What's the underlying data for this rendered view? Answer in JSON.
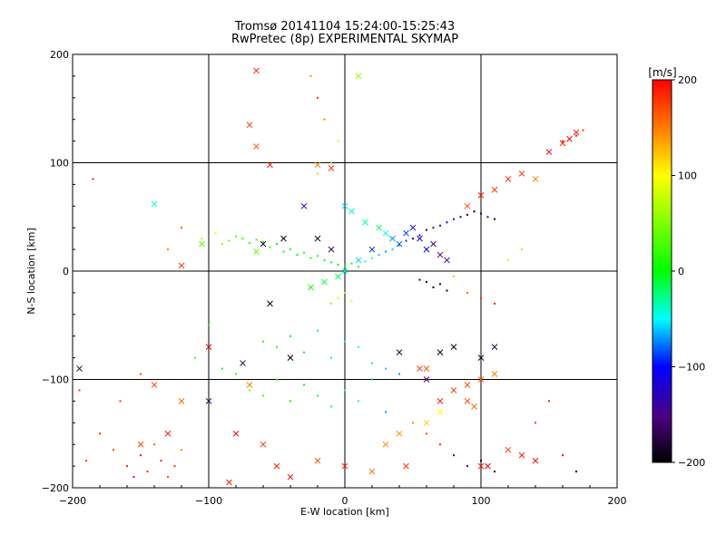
{
  "chart_data": {
    "type": "scatter",
    "title": "Tromsø 20141104 15:24:00-15:25:43",
    "subtitle": "RwPretec (8p) EXPERIMENTAL SKYMAP",
    "xlabel": "E-W location [km]",
    "ylabel": "N-S location [km]",
    "xlim": [
      -200,
      200
    ],
    "ylim": [
      -200,
      200
    ],
    "xticks": [
      "-200",
      "-100",
      "0",
      "100",
      "200"
    ],
    "yticks": [
      "-200",
      "-100",
      "0",
      "100",
      "200"
    ],
    "grid_x": [
      -100,
      0,
      100
    ],
    "grid_y": [
      -100,
      0,
      100
    ],
    "colorbar": {
      "label": "[m/s]",
      "range": [
        -200,
        200
      ],
      "ticks": [
        "200",
        "100",
        "0",
        "-100",
        "-200"
      ],
      "colors": [
        "#000000",
        "#4b0082",
        "#0000ff",
        "#00ffff",
        "#00ff00",
        "#ffff00",
        "#ff8000",
        "#ff0000"
      ]
    },
    "series": [
      {
        "name": "dot",
        "marker": "dot",
        "points": [
          [
            -190,
            -175,
            180
          ],
          [
            -180,
            -150,
            180
          ],
          [
            -170,
            -165,
            170
          ],
          [
            -160,
            -180,
            190
          ],
          [
            -150,
            -170,
            200
          ],
          [
            -145,
            -185,
            180
          ],
          [
            -140,
            -160,
            160
          ],
          [
            -135,
            -175,
            190
          ],
          [
            -130,
            -190,
            170
          ],
          [
            -125,
            -180,
            180
          ],
          [
            -120,
            -165,
            150
          ],
          [
            -155,
            -190,
            200
          ],
          [
            -165,
            -120,
            180
          ],
          [
            -150,
            -95,
            170
          ],
          [
            -195,
            -110,
            180
          ],
          [
            -185,
            85,
            190
          ],
          [
            -120,
            40,
            170
          ],
          [
            -130,
            20,
            150
          ],
          [
            -105,
            30,
            120
          ],
          [
            -95,
            35,
            90
          ],
          [
            -90,
            25,
            60
          ],
          [
            -85,
            28,
            40
          ],
          [
            -80,
            32,
            30
          ],
          [
            -75,
            30,
            20
          ],
          [
            -70,
            26,
            15
          ],
          [
            -65,
            29,
            25
          ],
          [
            -60,
            27,
            10
          ],
          [
            -55,
            22,
            20
          ],
          [
            -50,
            25,
            0
          ],
          [
            -45,
            18,
            10
          ],
          [
            -40,
            20,
            -10
          ],
          [
            -35,
            15,
            -5
          ],
          [
            -30,
            17,
            20
          ],
          [
            -25,
            12,
            10
          ],
          [
            -20,
            14,
            -20
          ],
          [
            -15,
            10,
            5
          ],
          [
            -10,
            8,
            -10
          ],
          [
            -5,
            6,
            0
          ],
          [
            0,
            5,
            -15
          ],
          [
            5,
            7,
            -5
          ],
          [
            10,
            4,
            -20
          ],
          [
            15,
            9,
            -40
          ],
          [
            20,
            12,
            -50
          ],
          [
            25,
            15,
            -60
          ],
          [
            30,
            18,
            -70
          ],
          [
            35,
            20,
            -60
          ],
          [
            40,
            24,
            -80
          ],
          [
            45,
            28,
            -90
          ],
          [
            50,
            30,
            -100
          ],
          [
            55,
            33,
            -110
          ],
          [
            60,
            38,
            -100
          ],
          [
            65,
            40,
            -120
          ],
          [
            70,
            42,
            -130
          ],
          [
            75,
            45,
            -110
          ],
          [
            80,
            48,
            -150
          ],
          [
            85,
            50,
            -180
          ],
          [
            90,
            52,
            -190
          ],
          [
            95,
            55,
            -200
          ],
          [
            100,
            53,
            -170
          ],
          [
            105,
            50,
            -160
          ],
          [
            110,
            48,
            -180
          ],
          [
            -60,
            -65,
            20
          ],
          [
            -50,
            -70,
            10
          ],
          [
            -40,
            -60,
            0
          ],
          [
            -30,
            -75,
            -10
          ],
          [
            -20,
            -55,
            -20
          ],
          [
            -10,
            -80,
            -30
          ],
          [
            0,
            -65,
            -40
          ],
          [
            10,
            -70,
            -50
          ],
          [
            20,
            -85,
            -30
          ],
          [
            30,
            -90,
            -60
          ],
          [
            40,
            -95,
            -70
          ],
          [
            -70,
            -110,
            40
          ],
          [
            -60,
            -115,
            30
          ],
          [
            -50,
            -100,
            20
          ],
          [
            -40,
            -120,
            10
          ],
          [
            -30,
            -105,
            0
          ],
          [
            -20,
            -115,
            -20
          ],
          [
            -10,
            -125,
            -30
          ],
          [
            0,
            -110,
            -50
          ],
          [
            10,
            -120,
            -40
          ],
          [
            20,
            -100,
            -60
          ],
          [
            30,
            -130,
            -70
          ],
          [
            50,
            -140,
            150
          ],
          [
            60,
            -150,
            170
          ],
          [
            70,
            -160,
            180
          ],
          [
            80,
            -170,
            -120
          ],
          [
            90,
            -180,
            -150
          ],
          [
            100,
            -175,
            -190
          ],
          [
            110,
            -185,
            -200
          ],
          [
            60,
            -10,
            -190
          ],
          [
            65,
            -15,
            -200
          ],
          [
            70,
            -12,
            -180
          ],
          [
            55,
            -8,
            -170
          ],
          [
            75,
            -18,
            -195
          ],
          [
            80,
            -5,
            120
          ],
          [
            90,
            -20,
            160
          ],
          [
            100,
            -25,
            180
          ],
          [
            -10,
            -30,
            60
          ],
          [
            -5,
            -25,
            80
          ],
          [
            0,
            -20,
            70
          ],
          [
            5,
            -28,
            90
          ],
          [
            -100,
            -50,
            10
          ],
          [
            -110,
            -80,
            30
          ],
          [
            -90,
            -90,
            -10
          ],
          [
            -80,
            -95,
            20
          ],
          [
            140,
            -140,
            180
          ],
          [
            150,
            -120,
            190
          ],
          [
            160,
            -170,
            200
          ],
          [
            170,
            -185,
            -190
          ],
          [
            120,
            10,
            80
          ],
          [
            130,
            20,
            60
          ],
          [
            110,
            -30,
            190
          ],
          [
            -20,
            90,
            120
          ],
          [
            -10,
            100,
            140
          ],
          [
            -5,
            120,
            110
          ],
          [
            -15,
            140,
            150
          ],
          [
            -20,
            160,
            180
          ],
          [
            -25,
            180,
            140
          ],
          [
            160,
            120,
            190
          ],
          [
            170,
            125,
            200
          ],
          [
            175,
            130,
            180
          ]
        ]
      },
      {
        "name": "cross",
        "marker": "x",
        "points": [
          [
            -65,
            185,
            190
          ],
          [
            -70,
            135,
            180
          ],
          [
            -65,
            115,
            170
          ],
          [
            -55,
            98,
            190
          ],
          [
            -20,
            98,
            150
          ],
          [
            -10,
            95,
            180
          ],
          [
            10,
            180,
            60
          ],
          [
            0,
            60,
            -60
          ],
          [
            5,
            55,
            -40
          ],
          [
            15,
            45,
            -30
          ],
          [
            25,
            40,
            -20
          ],
          [
            30,
            35,
            -50
          ],
          [
            35,
            30,
            -70
          ],
          [
            40,
            25,
            -80
          ],
          [
            45,
            35,
            -90
          ],
          [
            50,
            40,
            -110
          ],
          [
            55,
            30,
            -120
          ],
          [
            60,
            20,
            -100
          ],
          [
            65,
            25,
            -130
          ],
          [
            70,
            15,
            -150
          ],
          [
            75,
            10,
            -140
          ],
          [
            -30,
            60,
            -100
          ],
          [
            -45,
            30,
            -190
          ],
          [
            -60,
            25,
            -180
          ],
          [
            -65,
            18,
            40
          ],
          [
            -20,
            30,
            -190
          ],
          [
            -10,
            20,
            -170
          ],
          [
            20,
            20,
            -90
          ],
          [
            10,
            10,
            -60
          ],
          [
            0,
            0,
            -40
          ],
          [
            -5,
            -5,
            -20
          ],
          [
            -15,
            -10,
            -10
          ],
          [
            -25,
            -15,
            5
          ],
          [
            -55,
            -30,
            -190
          ],
          [
            -40,
            -80,
            -200
          ],
          [
            -75,
            -85,
            -180
          ],
          [
            40,
            -75,
            -170
          ],
          [
            60,
            -100,
            -150
          ],
          [
            70,
            -75,
            -190
          ],
          [
            80,
            -70,
            -200
          ],
          [
            100,
            -80,
            -180
          ],
          [
            110,
            -70,
            -170
          ],
          [
            55,
            -90,
            180
          ],
          [
            60,
            -90,
            170
          ],
          [
            70,
            -120,
            190
          ],
          [
            80,
            -110,
            180
          ],
          [
            90,
            -105,
            170
          ],
          [
            100,
            -100,
            160
          ],
          [
            110,
            -95,
            150
          ],
          [
            100,
            -180,
            190
          ],
          [
            105,
            -180,
            200
          ],
          [
            120,
            -165,
            180
          ],
          [
            130,
            -170,
            190
          ],
          [
            140,
            -175,
            200
          ],
          [
            -150,
            -160,
            180
          ],
          [
            -140,
            -105,
            170
          ],
          [
            -120,
            -120,
            160
          ],
          [
            -70,
            -105,
            150
          ],
          [
            90,
            -120,
            170
          ],
          [
            95,
            -125,
            160
          ],
          [
            -105,
            25,
            30
          ],
          [
            -120,
            5,
            180
          ],
          [
            -130,
            -150,
            190
          ],
          [
            -80,
            -150,
            200
          ],
          [
            -60,
            -160,
            180
          ],
          [
            -20,
            -175,
            170
          ],
          [
            0,
            -180,
            190
          ],
          [
            20,
            -185,
            160
          ],
          [
            30,
            -160,
            150
          ],
          [
            40,
            -150,
            140
          ],
          [
            60,
            -140,
            120
          ],
          [
            70,
            -130,
            100
          ],
          [
            120,
            85,
            190
          ],
          [
            130,
            90,
            180
          ],
          [
            150,
            110,
            200
          ],
          [
            160,
            118,
            190
          ],
          [
            165,
            122,
            200
          ],
          [
            170,
            128,
            190
          ],
          [
            140,
            85,
            150
          ],
          [
            110,
            75,
            180
          ],
          [
            100,
            70,
            190
          ],
          [
            90,
            60,
            170
          ],
          [
            -140,
            62,
            -40
          ],
          [
            -100,
            -70,
            200
          ],
          [
            -50,
            -180,
            190
          ],
          [
            -40,
            -190,
            200
          ],
          [
            -85,
            -195,
            190
          ],
          [
            45,
            -180,
            180
          ],
          [
            -195,
            -90,
            -180
          ],
          [
            -100,
            -120,
            -160
          ]
        ]
      }
    ]
  }
}
